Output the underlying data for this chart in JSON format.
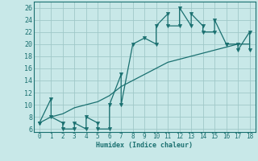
{
  "xlabel": "Humidex (Indice chaleur)",
  "xlim": [
    -0.5,
    18.5
  ],
  "ylim": [
    5.5,
    27
  ],
  "yticks": [
    6,
    8,
    10,
    12,
    14,
    16,
    18,
    20,
    22,
    24,
    26
  ],
  "xticks": [
    0,
    1,
    2,
    3,
    4,
    5,
    6,
    7,
    8,
    9,
    10,
    11,
    12,
    13,
    14,
    15,
    16,
    17,
    18
  ],
  "bg_color": "#c8e8e8",
  "grid_color": "#a0c8c8",
  "line_color": "#1a7070",
  "line1_x": [
    0,
    0,
    1,
    1,
    2,
    2,
    3,
    3,
    4,
    4,
    5,
    5,
    6,
    6,
    7,
    7,
    8,
    9,
    10,
    10,
    11,
    11,
    12,
    12,
    13,
    13,
    14,
    14,
    15,
    15,
    16,
    16,
    17,
    17,
    18,
    18
  ],
  "line1_y": [
    7,
    7,
    11,
    8,
    7,
    6,
    6,
    7,
    6,
    8,
    7,
    6,
    6,
    10,
    15,
    10,
    20,
    21,
    20,
    23,
    25,
    23,
    23,
    26,
    23,
    25,
    23,
    22,
    22,
    24,
    20,
    20,
    20,
    19,
    22,
    19
  ],
  "line2_x": [
    0,
    1,
    2,
    3,
    4,
    5,
    6,
    7,
    8,
    9,
    10,
    11,
    12,
    13,
    14,
    15,
    16,
    17,
    18
  ],
  "line2_y": [
    7,
    8,
    8.5,
    9.5,
    10,
    10.5,
    11.5,
    13,
    14,
    15,
    16,
    17,
    17.5,
    18,
    18.5,
    19,
    19.5,
    20,
    20
  ],
  "marker": "v",
  "marker_size": 3,
  "linewidth": 0.9
}
